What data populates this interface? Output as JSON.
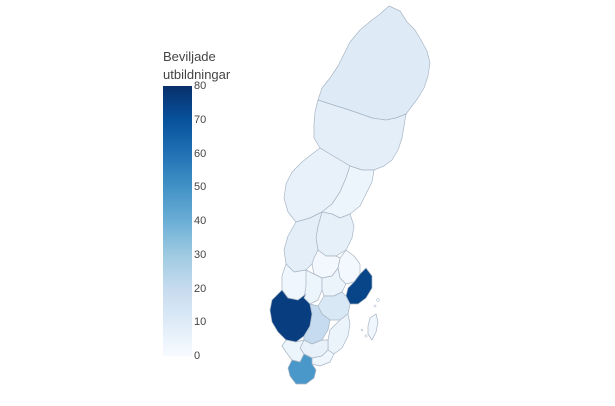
{
  "legend": {
    "title_line1": "Beviljade",
    "title_line2": "utbildningar",
    "min": 0,
    "max": 80,
    "ticks": [
      "80",
      "70",
      "60",
      "50",
      "40",
      "30",
      "20",
      "10",
      "0"
    ]
  },
  "colorscale": [
    "#f7fbff",
    "#deebf7",
    "#c6dbef",
    "#9ecae1",
    "#6baed6",
    "#4292c6",
    "#2171b5",
    "#08519c",
    "#08306b"
  ],
  "regions": [
    {
      "value": 10
    },
    {
      "value": 8
    },
    {
      "value": 6
    },
    {
      "value": 4
    },
    {
      "value": 7
    },
    {
      "value": 8
    },
    {
      "value": 3
    },
    {
      "value": 2
    },
    {
      "value": 2
    },
    {
      "value": 4
    },
    {
      "value": 5
    },
    {
      "value": 74
    },
    {
      "value": 76
    },
    {
      "value": 12
    },
    {
      "value": 20
    },
    {
      "value": 5
    },
    {
      "value": 6
    },
    {
      "value": 4
    },
    {
      "value": 3
    },
    {
      "value": 48
    },
    {
      "value": 3
    }
  ]
}
